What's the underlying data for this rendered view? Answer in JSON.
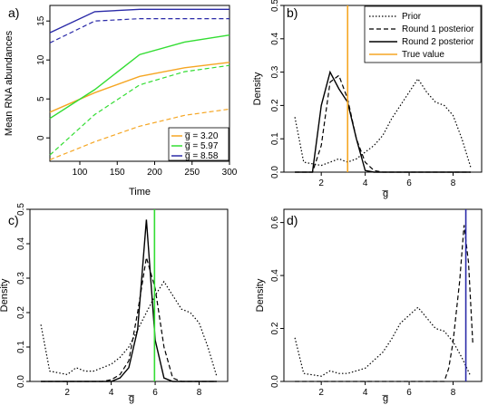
{
  "panel_labels": {
    "a": "a)",
    "b": "b)",
    "c": "c)",
    "d": "d)"
  },
  "legend_b": [
    "Prior",
    "Round 1 posterior",
    "Round 2 posterior",
    "True value"
  ],
  "legend_a": [
    "g̅ = 3.20",
    "g̅ = 5.97",
    "g̅ = 8.58"
  ],
  "chart_data": [
    {
      "panel": "a",
      "type": "line",
      "xlabel": "Time",
      "ylabel": "Mean RNA abundances",
      "xlim": [
        60,
        300
      ],
      "ylim": [
        -3,
        17
      ],
      "xticks": [
        100,
        150,
        200,
        250,
        300
      ],
      "yticks": [
        0,
        5,
        10,
        15
      ],
      "legend_position": "bottom-right",
      "series": [
        {
          "name": "g̅ = 3.20",
          "color": "#f5a623",
          "dash": "solid",
          "x": [
            60,
            120,
            180,
            240,
            300
          ],
          "y": [
            3.3,
            5.8,
            7.9,
            9.0,
            9.7
          ]
        },
        {
          "name": "g̅ = 3.20",
          "color": "#f5a623",
          "dash": "dashed",
          "x": [
            60,
            120,
            180,
            240,
            300
          ],
          "y": [
            -2.8,
            -0.5,
            1.5,
            2.9,
            3.7
          ]
        },
        {
          "name": "g̅ = 5.97",
          "color": "#33dd33",
          "dash": "solid",
          "x": [
            60,
            120,
            180,
            240,
            300
          ],
          "y": [
            2.5,
            6.2,
            10.7,
            12.3,
            13.2
          ]
        },
        {
          "name": "g̅ = 5.97",
          "color": "#33dd33",
          "dash": "dashed",
          "x": [
            60,
            120,
            180,
            240,
            300
          ],
          "y": [
            -2.2,
            3.0,
            6.8,
            8.5,
            9.3
          ]
        },
        {
          "name": "g̅ = 8.58",
          "color": "#2a2aa8",
          "dash": "solid",
          "x": [
            60,
            120,
            180,
            240,
            300
          ],
          "y": [
            13.5,
            16.2,
            16.5,
            16.5,
            16.5
          ]
        },
        {
          "name": "g̅ = 8.58",
          "color": "#2a2aa8",
          "dash": "dashed",
          "x": [
            60,
            120,
            180,
            240,
            300
          ],
          "y": [
            12.2,
            15.0,
            15.3,
            15.3,
            15.3
          ]
        }
      ]
    },
    {
      "panel": "b",
      "type": "line",
      "xlabel": "g̅",
      "ylabel": "Density",
      "xlim": [
        0.3,
        9.3
      ],
      "ylim": [
        0,
        0.5
      ],
      "xticks": [
        2,
        4,
        6,
        8
      ],
      "yticks": [
        0.0,
        0.1,
        0.2,
        0.3,
        0.4,
        0.5
      ],
      "true_value": 3.2,
      "true_color": "#f5a623",
      "legend_position": "top-right",
      "series": [
        {
          "name": "Prior",
          "dash": "dotted",
          "x": [
            0.8,
            1.2,
            1.6,
            2.0,
            2.4,
            2.8,
            3.2,
            3.6,
            4.0,
            4.4,
            4.8,
            5.2,
            5.6,
            6.0,
            6.4,
            6.8,
            7.2,
            7.6,
            8.0,
            8.4,
            8.8
          ],
          "y": [
            0.165,
            0.03,
            0.025,
            0.02,
            0.03,
            0.04,
            0.03,
            0.04,
            0.06,
            0.08,
            0.11,
            0.16,
            0.2,
            0.24,
            0.28,
            0.24,
            0.21,
            0.2,
            0.17,
            0.1,
            0.015
          ]
        },
        {
          "name": "Round 1 posterior",
          "dash": "dashed",
          "x": [
            0.8,
            1.2,
            1.6,
            2.0,
            2.4,
            2.8,
            3.2,
            3.6,
            4.0,
            4.4,
            4.8,
            5.2,
            5.6,
            6.0,
            6.4,
            6.8,
            7.2,
            7.6,
            8.0,
            8.4,
            8.8
          ],
          "y": [
            0,
            0,
            0,
            0.08,
            0.27,
            0.29,
            0.22,
            0.1,
            0.03,
            0.005,
            0,
            0,
            0,
            0,
            0,
            0,
            0,
            0,
            0,
            0,
            0
          ]
        },
        {
          "name": "Round 2 posterior",
          "dash": "solid",
          "x": [
            0.8,
            1.2,
            1.6,
            2.0,
            2.4,
            2.8,
            3.2,
            3.6,
            4.0,
            4.4,
            4.8,
            5.2,
            5.6,
            6.0,
            6.4,
            6.8,
            7.2,
            7.6,
            8.0,
            8.4,
            8.8
          ],
          "y": [
            0,
            0,
            0,
            0.2,
            0.3,
            0.25,
            0.21,
            0.1,
            0.005,
            0,
            0,
            0,
            0,
            0,
            0,
            0,
            0,
            0,
            0,
            0,
            0
          ]
        }
      ]
    },
    {
      "panel": "c",
      "type": "line",
      "xlabel": "g̅",
      "ylabel": "Density",
      "xlim": [
        0.3,
        9.3
      ],
      "ylim": [
        0,
        0.5
      ],
      "xticks": [
        2,
        4,
        6,
        8
      ],
      "yticks": [
        0.0,
        0.1,
        0.2,
        0.3,
        0.4,
        0.5
      ],
      "true_value": 5.97,
      "true_color": "#33dd33",
      "series": [
        {
          "name": "Prior",
          "dash": "dotted",
          "x": [
            0.8,
            1.2,
            1.6,
            2.0,
            2.4,
            2.8,
            3.2,
            3.6,
            4.0,
            4.4,
            4.8,
            5.2,
            5.6,
            6.0,
            6.4,
            6.8,
            7.2,
            7.6,
            8.0,
            8.4,
            8.8
          ],
          "y": [
            0.165,
            0.03,
            0.025,
            0.02,
            0.04,
            0.03,
            0.03,
            0.04,
            0.05,
            0.07,
            0.1,
            0.15,
            0.2,
            0.25,
            0.29,
            0.25,
            0.21,
            0.2,
            0.17,
            0.1,
            0.015
          ]
        },
        {
          "name": "Round 1 posterior",
          "dash": "dashed",
          "x": [
            0.8,
            1.2,
            1.6,
            2.0,
            2.4,
            2.8,
            3.2,
            3.6,
            4.0,
            4.4,
            4.8,
            5.2,
            5.6,
            6.0,
            6.4,
            6.8,
            7.2,
            7.6,
            8.0,
            8.4,
            8.8
          ],
          "y": [
            0,
            0,
            0,
            0,
            0,
            0,
            0,
            0,
            0.005,
            0.02,
            0.06,
            0.2,
            0.36,
            0.27,
            0.1,
            0.01,
            0,
            0,
            0,
            0,
            0
          ]
        },
        {
          "name": "Round 2 posterior",
          "dash": "solid",
          "x": [
            0.8,
            1.2,
            1.6,
            2.0,
            2.4,
            2.8,
            3.2,
            3.6,
            4.0,
            4.4,
            4.8,
            5.2,
            5.6,
            6.0,
            6.4,
            6.8,
            7.2,
            7.6,
            8.0,
            8.4,
            8.8
          ],
          "y": [
            0,
            0,
            0,
            0,
            0,
            0,
            0,
            0,
            0,
            0.01,
            0.04,
            0.15,
            0.47,
            0.12,
            0.01,
            0,
            0,
            0,
            0,
            0,
            0
          ]
        }
      ]
    },
    {
      "panel": "d",
      "type": "line",
      "xlabel": "g̅",
      "ylabel": "Density",
      "xlim": [
        0.3,
        9.3
      ],
      "ylim": [
        0,
        0.65
      ],
      "xticks": [
        2,
        4,
        6,
        8
      ],
      "yticks": [
        0.0,
        0.2,
        0.4,
        0.6
      ],
      "true_value": 8.58,
      "true_color": "#2a2aa8",
      "series": [
        {
          "name": "Prior",
          "dash": "dotted",
          "x": [
            0.8,
            1.2,
            1.6,
            2.0,
            2.4,
            2.8,
            3.2,
            3.6,
            4.0,
            4.4,
            4.8,
            5.2,
            5.6,
            6.0,
            6.4,
            6.8,
            7.2,
            7.6,
            8.0,
            8.4,
            8.8
          ],
          "y": [
            0.165,
            0.03,
            0.025,
            0.02,
            0.04,
            0.03,
            0.03,
            0.04,
            0.05,
            0.08,
            0.11,
            0.16,
            0.22,
            0.25,
            0.28,
            0.24,
            0.2,
            0.19,
            0.15,
            0.09,
            0.02
          ]
        },
        {
          "name": "Round 1 posterior",
          "dash": "dashed",
          "x": [
            0.8,
            1.2,
            1.6,
            2.0,
            2.4,
            2.8,
            3.2,
            3.6,
            4.0,
            4.4,
            4.8,
            5.2,
            5.6,
            6.0,
            6.4,
            6.8,
            7.2,
            7.6,
            7.8,
            8.0,
            8.3,
            8.5,
            8.7,
            8.9
          ],
          "y": [
            0,
            0,
            0,
            0,
            0,
            0,
            0,
            0,
            0,
            0,
            0,
            0,
            0,
            0,
            0,
            0,
            0,
            0,
            0.05,
            0.15,
            0.38,
            0.59,
            0.45,
            0.14
          ]
        }
      ]
    }
  ]
}
